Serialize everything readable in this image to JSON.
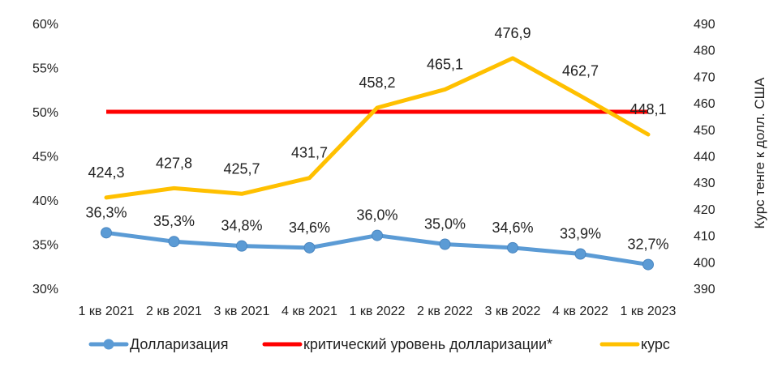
{
  "chart_data": {
    "type": "line",
    "categories": [
      "1 кв 2021",
      "2 кв 2021",
      "3 кв 2021",
      "4 кв 2021",
      "1 кв 2022",
      "2 кв 2022",
      "3 кв 2022",
      "4 кв 2022",
      "1 кв 2023"
    ],
    "series": [
      {
        "name": "Долларизация",
        "axis": "left",
        "color": "#5B9BD5",
        "marker": "circle",
        "values": [
          36.3,
          35.3,
          34.8,
          34.6,
          36.0,
          35.0,
          34.6,
          33.9,
          32.7
        ],
        "labels": [
          "36,3%",
          "35,3%",
          "34,8%",
          "34,6%",
          "36,0%",
          "35,0%",
          "34,6%",
          "33,9%",
          "32,7%"
        ]
      },
      {
        "name": "критический уровень долларизации*",
        "axis": "left",
        "color": "#FF0000",
        "marker": "none",
        "values": [
          50,
          50,
          50,
          50,
          50,
          50,
          50,
          50,
          50
        ]
      },
      {
        "name": "курс",
        "axis": "right",
        "color": "#FFC000",
        "marker": "none",
        "values": [
          424.3,
          427.8,
          425.7,
          431.7,
          458.2,
          465.1,
          476.9,
          462.7,
          448.1
        ],
        "labels": [
          "424,3",
          "427,8",
          "425,7",
          "431,7",
          "458,2",
          "465,1",
          "476,9",
          "462,7",
          "448,1"
        ]
      }
    ],
    "y_left": {
      "min": 30,
      "max": 60,
      "ticks": [
        "30%",
        "35%",
        "40%",
        "45%",
        "50%",
        "55%",
        "60%"
      ]
    },
    "y_right": {
      "min": 390,
      "max": 490,
      "ticks": [
        "390",
        "400",
        "410",
        "420",
        "430",
        "440",
        "450",
        "460",
        "470",
        "480",
        "490"
      ],
      "label": "Курс тенге к долл. США"
    },
    "legend": {
      "position": "bottom",
      "items": [
        "Долларизация",
        "критический уровень долларизации*",
        "курс"
      ]
    },
    "grid": false
  }
}
